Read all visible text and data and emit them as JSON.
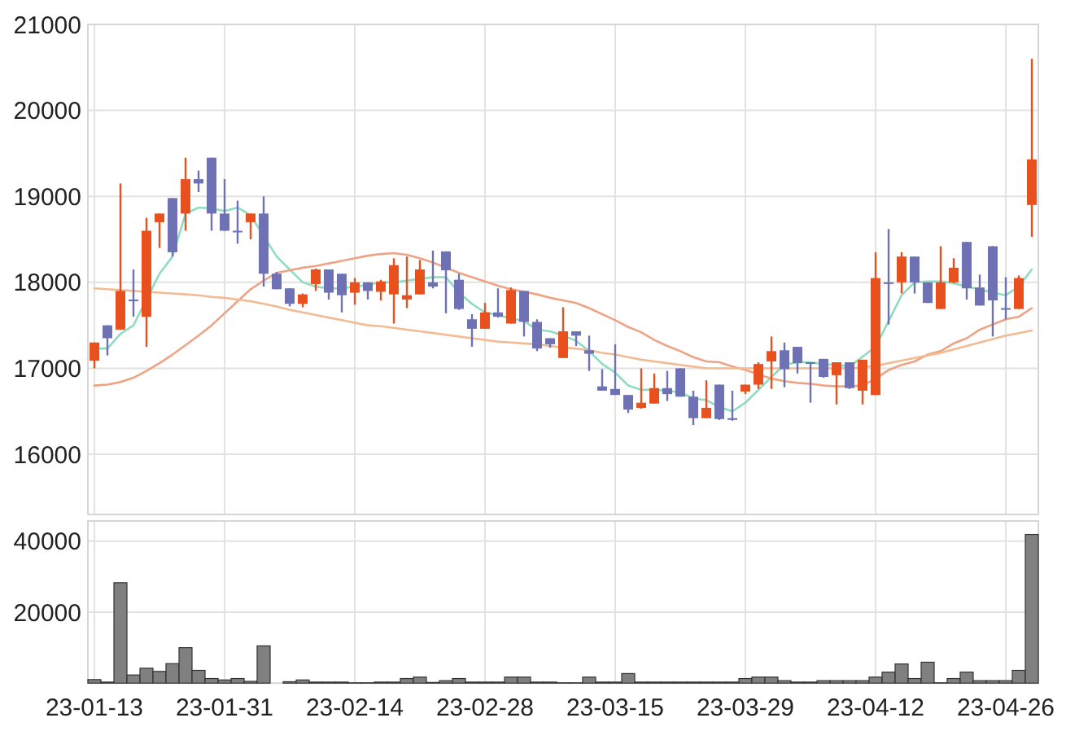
{
  "chart_data": [
    {
      "type": "candlestick",
      "categories": [
        null,
        null,
        null,
        null,
        null,
        null,
        null,
        null,
        null,
        null,
        null,
        null,
        null,
        null,
        null,
        null,
        null,
        null,
        null,
        null,
        null,
        null,
        null,
        null,
        null,
        null,
        null,
        null,
        null,
        null,
        null,
        null,
        null,
        null,
        null,
        null,
        null,
        null,
        null,
        null,
        null,
        null,
        null,
        null,
        null,
        null,
        null,
        null,
        null,
        null,
        null,
        null,
        null,
        null,
        null,
        null,
        null,
        null,
        null,
        null,
        null,
        null,
        null,
        null,
        null,
        null,
        null,
        null,
        null,
        null,
        null,
        null,
        null
      ],
      "ohlc": [
        [
          17090,
          17300,
          17000,
          17300
        ],
        [
          17500,
          17500,
          17150,
          17350
        ],
        [
          17450,
          19150,
          17450,
          17900
        ],
        [
          17800,
          18150,
          17600,
          17780
        ],
        [
          17600,
          18750,
          17250,
          18600
        ],
        [
          18700,
          18800,
          18400,
          18800
        ],
        [
          18980,
          18980,
          18300,
          18350
        ],
        [
          18800,
          19450,
          18600,
          19200
        ],
        [
          19200,
          19300,
          19050,
          19150
        ],
        [
          19450,
          19450,
          18600,
          18800
        ],
        [
          18800,
          19200,
          18600,
          18600
        ],
        [
          18600,
          18950,
          18450,
          18600
        ],
        [
          18700,
          18800,
          18500,
          18800
        ],
        [
          18800,
          19000,
          17950,
          18100
        ],
        [
          18100,
          18120,
          17920,
          17920
        ],
        [
          17930,
          17930,
          17720,
          17750
        ],
        [
          17750,
          17870,
          17710,
          17860
        ],
        [
          17980,
          18160,
          17900,
          18150
        ],
        [
          18150,
          18150,
          17800,
          17880
        ],
        [
          18100,
          18100,
          17650,
          17850
        ],
        [
          17880,
          18050,
          17740,
          18000
        ],
        [
          18000,
          18000,
          17800,
          17900
        ],
        [
          17890,
          18030,
          17790,
          18010
        ],
        [
          17860,
          18280,
          17520,
          18200
        ],
        [
          17800,
          18300,
          17700,
          17850
        ],
        [
          17860,
          18260,
          17860,
          18150
        ],
        [
          18000,
          18370,
          17930,
          17950
        ],
        [
          18360,
          18360,
          17640,
          18140
        ],
        [
          18030,
          18100,
          17680,
          17690
        ],
        [
          17570,
          17630,
          17250,
          17460
        ],
        [
          17460,
          17760,
          17460,
          17650
        ],
        [
          17650,
          17930,
          17590,
          17600
        ],
        [
          17520,
          17940,
          17520,
          17910
        ],
        [
          17900,
          17900,
          17370,
          17540
        ],
        [
          17540,
          17570,
          17200,
          17230
        ],
        [
          17350,
          17350,
          17240,
          17280
        ],
        [
          17120,
          17710,
          17120,
          17430
        ],
        [
          17430,
          17430,
          17260,
          17380
        ],
        [
          17210,
          17380,
          16970,
          17170
        ],
        [
          16790,
          16990,
          16740,
          16740
        ],
        [
          16760,
          17280,
          16690,
          16690
        ],
        [
          16690,
          16690,
          16480,
          16520
        ],
        [
          16540,
          17000,
          16530,
          16600
        ],
        [
          16590,
          16940,
          16590,
          16770
        ],
        [
          16770,
          16970,
          16620,
          16700
        ],
        [
          17000,
          17000,
          16670,
          16670
        ],
        [
          16670,
          16740,
          16340,
          16420
        ],
        [
          16420,
          16860,
          16420,
          16540
        ],
        [
          16810,
          16810,
          16400,
          16410
        ],
        [
          16420,
          16740,
          16390,
          16400
        ],
        [
          16730,
          16810,
          16700,
          16810
        ],
        [
          16810,
          17070,
          16760,
          17050
        ],
        [
          17080,
          17370,
          16760,
          17200
        ],
        [
          17210,
          17300,
          16780,
          16990
        ],
        [
          17250,
          17250,
          16940,
          17060
        ],
        [
          17070,
          17070,
          16600,
          17060
        ],
        [
          17110,
          17110,
          16890,
          16900
        ],
        [
          16920,
          17070,
          16580,
          17070
        ],
        [
          17070,
          17070,
          16760,
          16770
        ],
        [
          16740,
          17100,
          16580,
          17100
        ],
        [
          16690,
          18350,
          16690,
          18050
        ],
        [
          18000,
          18620,
          17510,
          18000
        ],
        [
          18000,
          18350,
          17870,
          18300
        ],
        [
          18300,
          18300,
          17870,
          18000
        ],
        [
          18000,
          18000,
          17760,
          17760
        ],
        [
          17690,
          18420,
          17690,
          18000
        ],
        [
          18000,
          18280,
          17990,
          18170
        ],
        [
          18470,
          18470,
          17800,
          17930
        ],
        [
          17940,
          18090,
          17730,
          17730
        ],
        [
          18420,
          18420,
          17370,
          17790
        ],
        [
          17700,
          18060,
          17570,
          17690
        ],
        [
          17690,
          18080,
          17690,
          18050
        ],
        [
          18900,
          20600,
          18530,
          19430
        ]
      ],
      "colors": [
        "#e8501e",
        "#6e72b4",
        "#e8501e",
        "#6e72b4",
        "#e8501e",
        "#e8501e",
        "#6e72b4",
        "#e8501e",
        "#6e72b4",
        "#6e72b4",
        "#6e72b4",
        "#6e72b4",
        "#e8501e",
        "#6e72b4",
        "#6e72b4",
        "#6e72b4",
        "#e8501e",
        "#e8501e",
        "#6e72b4",
        "#6e72b4",
        "#e8501e",
        "#6e72b4",
        "#e8501e",
        "#e8501e",
        "#e8501e",
        "#e8501e",
        "#6e72b4",
        "#6e72b4",
        "#6e72b4",
        "#6e72b4",
        "#e8501e",
        "#6e72b4",
        "#e8501e",
        "#6e72b4",
        "#6e72b4",
        "#6e72b4",
        "#e8501e",
        "#6e72b4",
        "#6e72b4",
        "#6e72b4",
        "#6e72b4",
        "#6e72b4",
        "#e8501e",
        "#e8501e",
        "#6e72b4",
        "#6e72b4",
        "#6e72b4",
        "#e8501e",
        "#6e72b4",
        "#6e72b4",
        "#e8501e",
        "#e8501e",
        "#e8501e",
        "#6e72b4",
        "#6e72b4",
        "#6e72b4",
        "#6e72b4",
        "#e8501e",
        "#6e72b4",
        "#e8501e",
        "#e8501e",
        "#6e72b4",
        "#e8501e",
        "#6e72b4",
        "#6e72b4",
        "#e8501e",
        "#e8501e",
        "#6e72b4",
        "#6e72b4",
        "#6e72b4",
        "#6e72b4",
        "#e8501e",
        "#e8501e"
      ],
      "series": [
        {
          "type": "line",
          "color": "#8fdcc2",
          "values": [
            17230,
            17230,
            17400,
            17500,
            null,
            18100,
            18300,
            18800,
            18870,
            18860,
            18830,
            18870,
            18780,
            null,
            18300,
            18150,
            18000,
            17950,
            17930,
            17930,
            17950,
            17970,
            18000,
            18000,
            18020,
            18040,
            18060,
            18060,
            17880,
            17750,
            17650,
            17620,
            17580,
            17550,
            17450,
            17430,
            17380,
            17320,
            17200,
            17050,
            16950,
            16800,
            16750,
            16750,
            16740,
            16720,
            16650,
            16630,
            16550,
            16500,
            16600,
            16750,
            16900,
            17040,
            17070,
            17070,
            17050,
            17040,
            17020,
            null,
            17250,
            17550,
            17850,
            18000,
            18010,
            18010,
            17990,
            17950,
            17920,
            17880,
            17850,
            17950,
            18150
          ]
        },
        {
          "type": "line",
          "color": "#eea384",
          "values": [
            16800,
            16810,
            16840,
            16890,
            16970,
            17060,
            17160,
            17270,
            17380,
            17500,
            17640,
            17780,
            17920,
            18020,
            18110,
            18140,
            18170,
            18190,
            18220,
            18250,
            18280,
            18310,
            18330,
            18340,
            18320,
            18280,
            18230,
            18170,
            18110,
            18060,
            18010,
            17960,
            17920,
            17890,
            17860,
            17820,
            17790,
            17760,
            17700,
            17630,
            17560,
            17480,
            17420,
            17330,
            17260,
            17200,
            17130,
            17080,
            17070,
            17020,
            16980,
            16930,
            16880,
            16850,
            16830,
            16820,
            16800,
            16790,
            16790,
            16800,
            16880,
            16980,
            17040,
            17080,
            17160,
            17200,
            17290,
            17350,
            17450,
            17510,
            17570,
            17600,
            17700
          ]
        },
        {
          "type": "line",
          "color": "#f2bb94",
          "values": [
            17930,
            17920,
            17910,
            17900,
            17890,
            17880,
            17870,
            17860,
            17850,
            17830,
            17820,
            17800,
            17780,
            17750,
            17720,
            17680,
            17650,
            17620,
            17590,
            17560,
            17530,
            17500,
            17490,
            17470,
            17450,
            17430,
            17410,
            17390,
            17370,
            17350,
            17330,
            17310,
            17300,
            17290,
            17280,
            17260,
            17240,
            17230,
            17210,
            17180,
            17160,
            17130,
            17100,
            17080,
            17060,
            17040,
            17020,
            17000,
            17000,
            17000,
            17000,
            17000,
            17000,
            17000,
            17000,
            17000,
            17000,
            17000,
            17000,
            17010,
            17030,
            17060,
            17090,
            17120,
            17150,
            17180,
            17220,
            17260,
            17300,
            17340,
            17380,
            17410,
            17440
          ]
        }
      ],
      "ylim": [
        15300,
        21000
      ],
      "yticks": [
        16000,
        17000,
        18000,
        19000,
        20000,
        21000
      ],
      "grid": true,
      "tick_labels": "y"
    },
    {
      "type": "bar",
      "categories": [
        "23-01-13",
        null,
        null,
        null,
        null,
        null,
        null,
        null,
        null,
        null,
        "23-01-31",
        null,
        null,
        null,
        null,
        null,
        null,
        null,
        null,
        null,
        "23-02-14",
        null,
        null,
        null,
        null,
        null,
        null,
        null,
        null,
        null,
        "23-02-28",
        null,
        null,
        null,
        null,
        null,
        null,
        null,
        null,
        null,
        "23-03-15",
        null,
        null,
        null,
        null,
        null,
        null,
        null,
        null,
        null,
        "23-03-29",
        null,
        null,
        null,
        null,
        null,
        null,
        null,
        null,
        null,
        "23-04-12",
        null,
        null,
        null,
        null,
        null,
        null,
        null,
        null,
        null,
        "23-04-26",
        null,
        null
      ],
      "values": [
        1000,
        300,
        28300,
        2300,
        4200,
        3300,
        5500,
        10000,
        3600,
        1300,
        900,
        1300,
        500,
        10500,
        0,
        400,
        900,
        300,
        300,
        300,
        100,
        100,
        300,
        300,
        1300,
        1700,
        200,
        700,
        1300,
        300,
        300,
        300,
        1700,
        1700,
        300,
        300,
        100,
        100,
        1700,
        300,
        300,
        2700,
        300,
        300,
        300,
        300,
        300,
        300,
        300,
        300,
        1300,
        1700,
        1700,
        700,
        300,
        300,
        700,
        700,
        700,
        700,
        1700,
        3100,
        5400,
        1300,
        5900,
        100,
        1300,
        3100,
        700,
        700,
        700,
        3600,
        41900
      ],
      "color": "#808080",
      "ylim": [
        0,
        45700
      ],
      "yticks": [
        20000,
        40000
      ],
      "grid": true
    }
  ]
}
